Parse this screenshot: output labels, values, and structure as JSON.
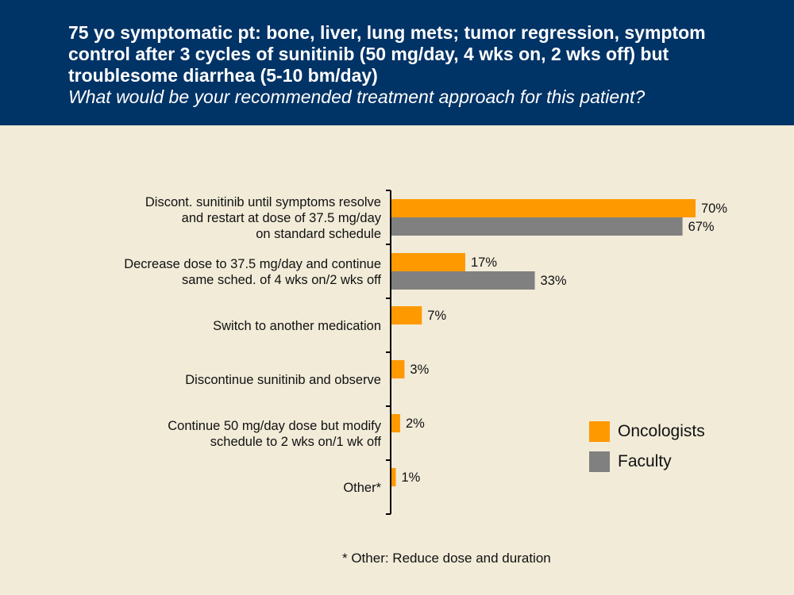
{
  "header": {
    "title": "75 yo symptomatic pt: bone, liver, lung mets; tumor regression, symptom control after 3 cycles of sunitinib (50 mg/day, 4 wks on, 2 wks off) but troublesome diarrhea (5-10 bm/day)",
    "subtitle": "What would be your recommended treatment approach for this patient?"
  },
  "footnote": "* Other: Reduce dose and duration",
  "colors": {
    "header_bg": "#003366",
    "background": "#F1EBD8",
    "oncologists": "#FF9900",
    "faculty": "#808080"
  },
  "chart_data": {
    "type": "bar",
    "orientation": "horizontal",
    "categories": [
      [
        "Discont. sunitinib until symptoms resolve",
        "and restart at dose of 37.5 mg/day",
        "on standard schedule"
      ],
      [
        "Decrease dose to 37.5 mg/day and continue",
        "same sched. of 4 wks on/2 wks off"
      ],
      [
        "Switch to another medication"
      ],
      [
        "Discontinue sunitinib and observe"
      ],
      [
        "Continue 50 mg/day dose but modify",
        "schedule to 2 wks on/1 wk off"
      ],
      [
        "Other*"
      ]
    ],
    "series": [
      {
        "name": "Oncologists",
        "color": "#FF9900",
        "values": [
          70,
          17,
          7,
          3,
          2,
          1
        ]
      },
      {
        "name": "Faculty",
        "color": "#808080",
        "values": [
          67,
          33,
          null,
          null,
          null,
          null
        ]
      }
    ],
    "value_suffix": "%",
    "xlim": [
      0,
      100
    ],
    "legend_position": "bottom-right",
    "grid": false
  }
}
